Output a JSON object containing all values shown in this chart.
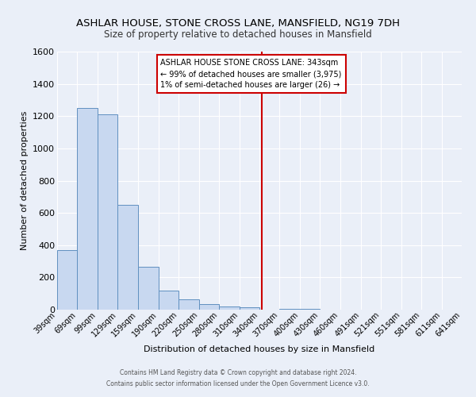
{
  "title": "ASHLAR HOUSE, STONE CROSS LANE, MANSFIELD, NG19 7DH",
  "subtitle": "Size of property relative to detached houses in Mansfield",
  "xlabel": "Distribution of detached houses by size in Mansfield",
  "ylabel": "Number of detached properties",
  "bin_edges": [
    39,
    69,
    99,
    129,
    159,
    190,
    220,
    250,
    280,
    310,
    340,
    370,
    400,
    430,
    460,
    491,
    521,
    551,
    581,
    611,
    641
  ],
  "bar_heights": [
    370,
    1250,
    1210,
    650,
    265,
    120,
    65,
    35,
    20,
    15,
    0,
    5,
    5,
    0,
    0,
    0,
    0,
    0,
    0,
    0
  ],
  "bar_fill_color": "#c8d8f0",
  "bar_edge_color": "#6090c0",
  "reference_line_x": 343,
  "reference_line_color": "#cc0000",
  "ylim": [
    0,
    1600
  ],
  "annotation_line1": "ASHLAR HOUSE STONE CROSS LANE: 343sqm",
  "annotation_line2": "← 99% of detached houses are smaller (3,975)",
  "annotation_line3": "1% of semi-detached houses are larger (26) →",
  "annotation_box_color": "#ffffff",
  "annotation_box_edge_color": "#cc0000",
  "footnote1": "Contains HM Land Registry data © Crown copyright and database right 2024.",
  "footnote2": "Contains public sector information licensed under the Open Government Licence v3.0.",
  "background_color": "#eaeff8",
  "grid_color": "#ffffff",
  "title_fontsize": 9.5,
  "subtitle_fontsize": 8.5,
  "ylabel_fontsize": 8,
  "xlabel_fontsize": 8,
  "tick_fontsize": 7,
  "ytick_fontsize": 8,
  "tick_labels": [
    "39sqm",
    "69sqm",
    "99sqm",
    "129sqm",
    "159sqm",
    "190sqm",
    "220sqm",
    "250sqm",
    "280sqm",
    "310sqm",
    "340sqm",
    "370sqm",
    "400sqm",
    "430sqm",
    "460sqm",
    "491sqm",
    "521sqm",
    "551sqm",
    "581sqm",
    "611sqm",
    "641sqm"
  ],
  "yticks": [
    0,
    200,
    400,
    600,
    800,
    1000,
    1200,
    1400,
    1600
  ]
}
